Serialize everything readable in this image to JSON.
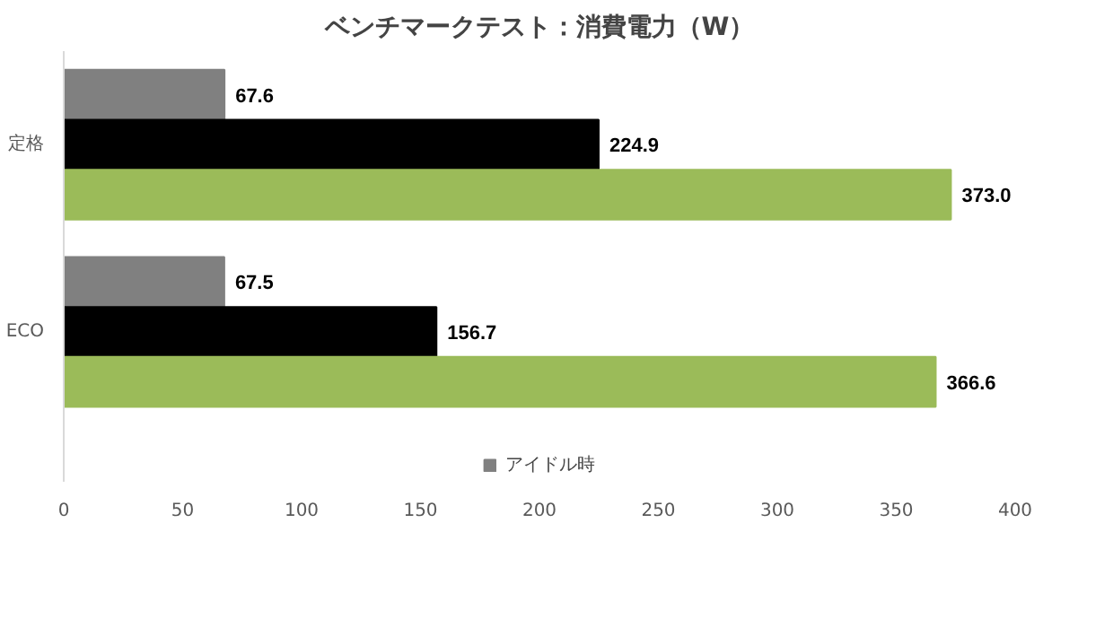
{
  "chart_data": {
    "type": "bar",
    "orientation": "horizontal",
    "title": "ベンチマークテスト：消費電力（W）",
    "categories": [
      "定格",
      "ECO"
    ],
    "series": [
      {
        "name": "アイドル時",
        "color": "#808080",
        "values": [
          67.6,
          67.5
        ],
        "value_labels": [
          "67.6",
          "67.5"
        ]
      },
      {
        "color": "#000000",
        "values": [
          224.9,
          156.7
        ],
        "value_labels": [
          "224.9",
          "156.7"
        ]
      },
      {
        "color": "#9bbb59",
        "values": [
          373.0,
          366.6
        ],
        "value_labels": [
          "373.0",
          "366.6"
        ]
      }
    ],
    "xlim": [
      0,
      400
    ],
    "xticks": [
      0,
      50,
      100,
      150,
      200,
      250,
      300,
      350,
      400
    ],
    "legend": "bottom"
  }
}
